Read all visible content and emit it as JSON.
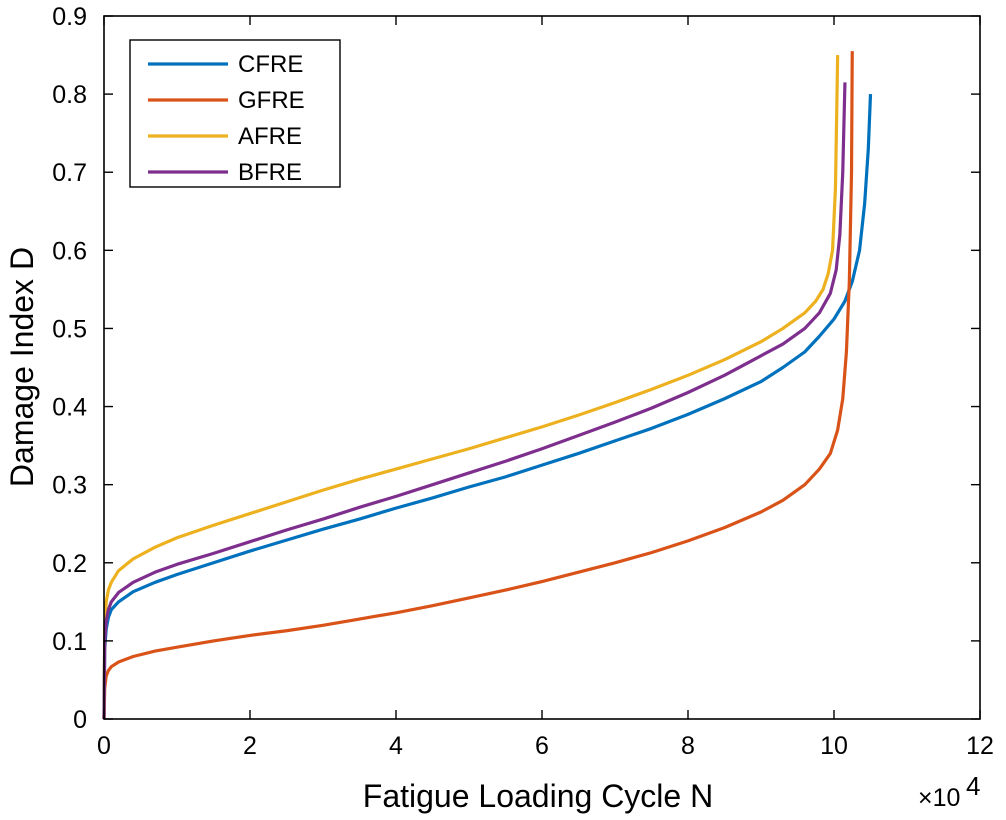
{
  "chart_data": {
    "type": "line",
    "title": "",
    "xlabel": "Fatigue Loading Cycle N",
    "ylabel": "Damage Index D",
    "x_multiplier_base": "×10",
    "x_multiplier_exponent": "4",
    "xlim": [
      0,
      12
    ],
    "ylim": [
      0,
      0.9
    ],
    "xticks": [
      0,
      2,
      4,
      6,
      8,
      10,
      12
    ],
    "yticks": [
      0,
      0.1,
      0.2,
      0.3,
      0.4,
      0.5,
      0.6,
      0.7,
      0.8,
      0.9
    ],
    "xtick_labels": [
      "0",
      "2",
      "4",
      "6",
      "8",
      "10",
      "12"
    ],
    "ytick_labels": [
      "0",
      "0.1",
      "0.2",
      "0.3",
      "0.4",
      "0.5",
      "0.6",
      "0.7",
      "0.8",
      "0.9"
    ],
    "grid": false,
    "legend_position": "top-left",
    "series": [
      {
        "name": "CFRE",
        "color": "#0072BD",
        "x": [
          0,
          0.01,
          0.03,
          0.06,
          0.1,
          0.2,
          0.4,
          0.7,
          1.0,
          1.5,
          2.0,
          2.5,
          3.0,
          3.5,
          4.0,
          4.5,
          5.0,
          5.5,
          6.0,
          6.5,
          7.0,
          7.5,
          8.0,
          8.5,
          9.0,
          9.3,
          9.6,
          9.8,
          10.0,
          10.15,
          10.25,
          10.35,
          10.42,
          10.47,
          10.5
        ],
        "y": [
          0.0,
          0.09,
          0.115,
          0.13,
          0.14,
          0.15,
          0.163,
          0.175,
          0.185,
          0.2,
          0.215,
          0.229,
          0.243,
          0.256,
          0.27,
          0.283,
          0.297,
          0.31,
          0.325,
          0.34,
          0.356,
          0.372,
          0.39,
          0.41,
          0.432,
          0.45,
          0.47,
          0.49,
          0.512,
          0.535,
          0.56,
          0.6,
          0.66,
          0.73,
          0.8
        ]
      },
      {
        "name": "GFRE",
        "color": "#D95319",
        "x": [
          0,
          0.01,
          0.03,
          0.06,
          0.1,
          0.2,
          0.4,
          0.7,
          1.0,
          1.5,
          2.0,
          2.5,
          3.0,
          3.5,
          4.0,
          4.5,
          5.0,
          5.5,
          6.0,
          6.5,
          7.0,
          7.5,
          8.0,
          8.5,
          9.0,
          9.3,
          9.6,
          9.8,
          9.95,
          10.05,
          10.12,
          10.17,
          10.21,
          10.24,
          10.25
        ],
        "y": [
          0.0,
          0.04,
          0.055,
          0.062,
          0.067,
          0.073,
          0.08,
          0.087,
          0.092,
          0.1,
          0.107,
          0.113,
          0.12,
          0.128,
          0.136,
          0.145,
          0.155,
          0.165,
          0.176,
          0.188,
          0.2,
          0.213,
          0.228,
          0.245,
          0.265,
          0.28,
          0.3,
          0.32,
          0.34,
          0.37,
          0.41,
          0.47,
          0.56,
          0.7,
          0.855
        ]
      },
      {
        "name": "AFRE",
        "color": "#EDB120",
        "x": [
          0,
          0.01,
          0.03,
          0.06,
          0.1,
          0.2,
          0.4,
          0.7,
          1.0,
          1.5,
          2.0,
          2.5,
          3.0,
          3.5,
          4.0,
          4.5,
          5.0,
          5.5,
          6.0,
          6.5,
          7.0,
          7.5,
          8.0,
          8.5,
          9.0,
          9.3,
          9.6,
          9.75,
          9.85,
          9.92,
          9.98,
          10.02,
          10.05
        ],
        "y": [
          0.0,
          0.12,
          0.15,
          0.165,
          0.175,
          0.19,
          0.205,
          0.22,
          0.232,
          0.248,
          0.263,
          0.278,
          0.293,
          0.307,
          0.32,
          0.333,
          0.346,
          0.36,
          0.374,
          0.389,
          0.405,
          0.422,
          0.44,
          0.46,
          0.483,
          0.5,
          0.52,
          0.535,
          0.55,
          0.57,
          0.6,
          0.68,
          0.85
        ]
      },
      {
        "name": "BFRE",
        "color": "#7E2F8E",
        "x": [
          0,
          0.01,
          0.03,
          0.06,
          0.1,
          0.2,
          0.4,
          0.7,
          1.0,
          1.5,
          2.0,
          2.5,
          3.0,
          3.5,
          4.0,
          4.5,
          5.0,
          5.5,
          6.0,
          6.5,
          7.0,
          7.5,
          8.0,
          8.5,
          9.0,
          9.3,
          9.6,
          9.8,
          9.95,
          10.03,
          10.08,
          10.12,
          10.15
        ],
        "y": [
          0.0,
          0.1,
          0.125,
          0.14,
          0.15,
          0.162,
          0.175,
          0.188,
          0.198,
          0.212,
          0.227,
          0.242,
          0.256,
          0.271,
          0.285,
          0.3,
          0.315,
          0.33,
          0.346,
          0.363,
          0.38,
          0.398,
          0.418,
          0.44,
          0.465,
          0.48,
          0.5,
          0.52,
          0.545,
          0.575,
          0.62,
          0.7,
          0.815
        ]
      }
    ]
  }
}
